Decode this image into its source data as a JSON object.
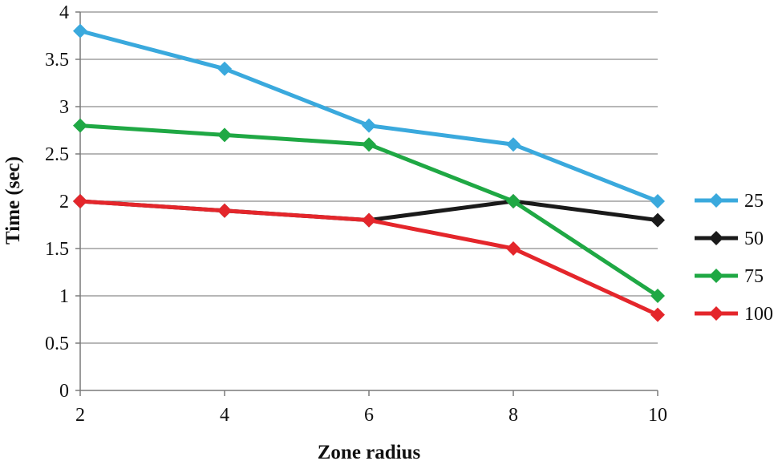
{
  "chart_data": {
    "type": "line",
    "title": "",
    "xlabel": "Zone radius",
    "ylabel": "Time (sec)",
    "x": [
      2,
      4,
      6,
      8,
      10
    ],
    "xlim": [
      2,
      10
    ],
    "ylim": [
      0,
      4
    ],
    "y_ticks": [
      "0",
      "0.5",
      "1",
      "1.5",
      "2",
      "2.5",
      "3",
      "3.5",
      "4"
    ],
    "x_ticks": [
      "2",
      "4",
      "6",
      "8",
      "10"
    ],
    "grid": "horizontal",
    "legend_position": "right",
    "marker": "diamond",
    "series": [
      {
        "name": "25",
        "color": "#3aa9dd",
        "values": [
          3.8,
          3.4,
          2.8,
          2.6,
          2.0
        ]
      },
      {
        "name": "50",
        "color": "#1a1a1a",
        "values": [
          2.0,
          1.9,
          1.8,
          2.0,
          1.8
        ]
      },
      {
        "name": "75",
        "color": "#1fa844",
        "values": [
          2.8,
          2.7,
          2.6,
          2.0,
          1.0
        ]
      },
      {
        "name": "100",
        "color": "#e4262b",
        "values": [
          2.0,
          1.9,
          1.8,
          1.5,
          0.8
        ]
      }
    ]
  }
}
